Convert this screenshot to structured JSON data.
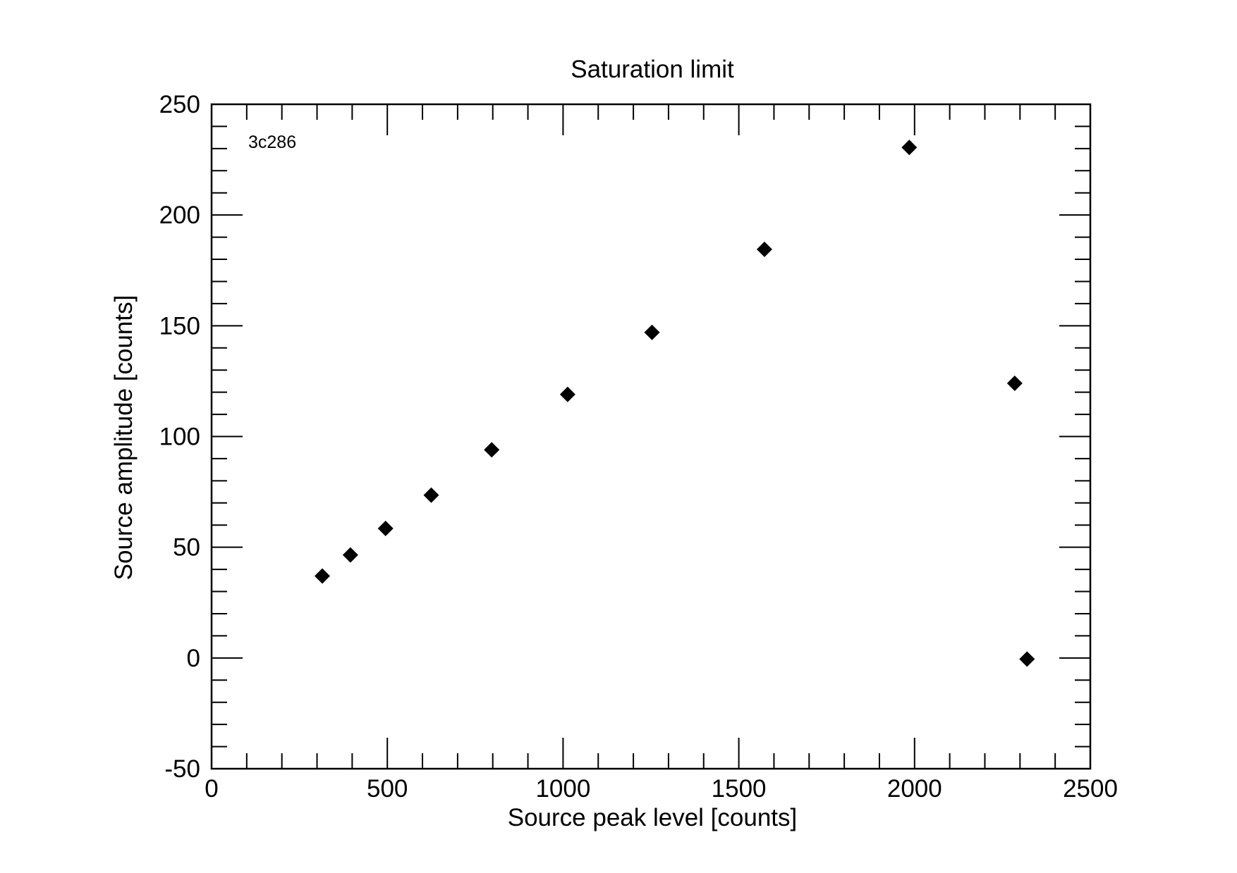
{
  "chart_data": {
    "type": "scatter",
    "title": "Saturation limit",
    "xlabel": "Source peak level [counts]",
    "ylabel": "Source amplitude [counts]",
    "annotation": "3c286",
    "xlim": [
      0,
      2500
    ],
    "ylim": [
      -50,
      250
    ],
    "xticks": [
      0,
      500,
      1000,
      1500,
      2000,
      2500
    ],
    "yticks": [
      -50,
      0,
      50,
      100,
      150,
      200,
      250
    ],
    "x_minor_step": 100,
    "y_minor_step": 10,
    "grid": false,
    "legend": "none",
    "marker": "diamond",
    "marker_color": "#000000",
    "series": [
      {
        "points": [
          {
            "x": 315,
            "y": 37
          },
          {
            "x": 395,
            "y": 46.5
          },
          {
            "x": 495,
            "y": 58.5
          },
          {
            "x": 625,
            "y": 73.5
          },
          {
            "x": 797,
            "y": 94
          },
          {
            "x": 1013,
            "y": 119
          },
          {
            "x": 1253,
            "y": 147
          },
          {
            "x": 1573,
            "y": 184.5
          },
          {
            "x": 1985,
            "y": 230.5
          },
          {
            "x": 2285,
            "y": 124
          },
          {
            "x": 2320,
            "y": -0.5
          }
        ]
      }
    ]
  }
}
